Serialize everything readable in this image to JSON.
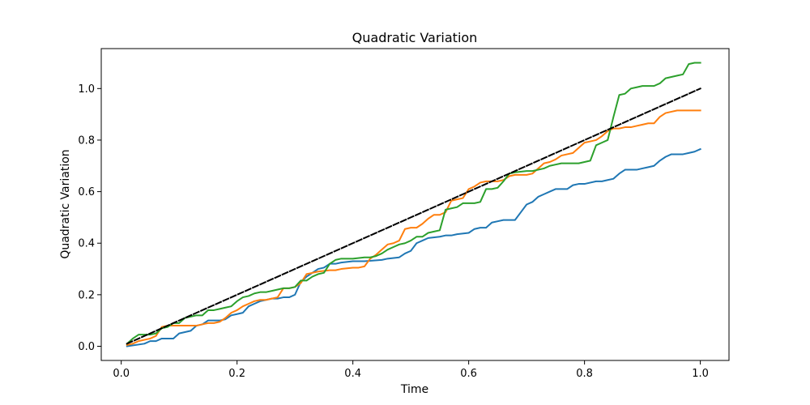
{
  "chart_data": {
    "type": "line",
    "title": "Quadratic Variation",
    "xlabel": "Time",
    "ylabel": "Quadratic Variation",
    "xlim": [
      -0.0345,
      1.0495
    ],
    "ylim": [
      -0.055,
      1.155
    ],
    "xticks": [
      0.0,
      0.2,
      0.4,
      0.6,
      0.8,
      1.0
    ],
    "xtick_labels": [
      "0.0",
      "0.2",
      "0.4",
      "0.6",
      "0.8",
      "1.0"
    ],
    "yticks": [
      0.0,
      0.2,
      0.4,
      0.6,
      0.8,
      1.0
    ],
    "ytick_labels": [
      "0.0",
      "0.2",
      "0.4",
      "0.6",
      "0.8",
      "1.0"
    ],
    "grid": false,
    "legend": "none",
    "series": [
      {
        "color": "#1f77b4",
        "style": "solid",
        "x": [
          0.01,
          0.04,
          0.05,
          0.06,
          0.07,
          0.08,
          0.09,
          0.1,
          0.11,
          0.12,
          0.13,
          0.14,
          0.15,
          0.16,
          0.17,
          0.18,
          0.19,
          0.2,
          0.21,
          0.22,
          0.23,
          0.24,
          0.25,
          0.26,
          0.27,
          0.28,
          0.29,
          0.3,
          0.31,
          0.32,
          0.33,
          0.34,
          0.35,
          0.36,
          0.37,
          0.38,
          0.4,
          0.42,
          0.45,
          0.46,
          0.48,
          0.49,
          0.5,
          0.51,
          0.52,
          0.53,
          0.55,
          0.56,
          0.57,
          0.58,
          0.6,
          0.61,
          0.62,
          0.63,
          0.64,
          0.65,
          0.66,
          0.67,
          0.68,
          0.69,
          0.7,
          0.71,
          0.72,
          0.73,
          0.74,
          0.75,
          0.76,
          0.77,
          0.78,
          0.79,
          0.8,
          0.82,
          0.83,
          0.84,
          0.85,
          0.86,
          0.87,
          0.88,
          0.89,
          0.9,
          0.91,
          0.92,
          0.93,
          0.94,
          0.95,
          0.96,
          0.97,
          0.98,
          0.99,
          1.0
        ],
        "y": [
          0.0,
          0.01,
          0.02,
          0.02,
          0.03,
          0.03,
          0.03,
          0.05,
          0.055,
          0.06,
          0.08,
          0.085,
          0.1,
          0.1,
          0.1,
          0.105,
          0.12,
          0.125,
          0.13,
          0.155,
          0.165,
          0.175,
          0.18,
          0.185,
          0.185,
          0.19,
          0.19,
          0.2,
          0.25,
          0.27,
          0.285,
          0.3,
          0.305,
          0.32,
          0.32,
          0.325,
          0.33,
          0.33,
          0.335,
          0.34,
          0.345,
          0.36,
          0.37,
          0.4,
          0.41,
          0.42,
          0.425,
          0.43,
          0.43,
          0.435,
          0.44,
          0.455,
          0.46,
          0.46,
          0.48,
          0.485,
          0.49,
          0.49,
          0.49,
          0.52,
          0.55,
          0.56,
          0.58,
          0.59,
          0.6,
          0.61,
          0.61,
          0.61,
          0.625,
          0.63,
          0.63,
          0.64,
          0.64,
          0.645,
          0.65,
          0.67,
          0.685,
          0.685,
          0.685,
          0.69,
          0.695,
          0.7,
          0.72,
          0.735,
          0.745,
          0.745,
          0.745,
          0.75,
          0.755,
          0.765
        ]
      },
      {
        "color": "#ff7f0e",
        "style": "solid",
        "x": [
          0.01,
          0.02,
          0.03,
          0.04,
          0.05,
          0.06,
          0.07,
          0.08,
          0.09,
          0.1,
          0.11,
          0.12,
          0.13,
          0.14,
          0.15,
          0.16,
          0.17,
          0.18,
          0.19,
          0.2,
          0.21,
          0.22,
          0.23,
          0.24,
          0.25,
          0.26,
          0.27,
          0.28,
          0.29,
          0.3,
          0.31,
          0.32,
          0.34,
          0.36,
          0.37,
          0.38,
          0.4,
          0.41,
          0.42,
          0.43,
          0.44,
          0.45,
          0.46,
          0.47,
          0.48,
          0.49,
          0.5,
          0.51,
          0.52,
          0.53,
          0.54,
          0.55,
          0.56,
          0.57,
          0.58,
          0.59,
          0.6,
          0.61,
          0.62,
          0.63,
          0.64,
          0.65,
          0.66,
          0.67,
          0.68,
          0.7,
          0.71,
          0.72,
          0.73,
          0.74,
          0.75,
          0.76,
          0.77,
          0.78,
          0.79,
          0.8,
          0.81,
          0.82,
          0.83,
          0.84,
          0.85,
          0.86,
          0.87,
          0.88,
          0.89,
          0.9,
          0.91,
          0.92,
          0.93,
          0.94,
          0.95,
          0.96,
          0.97,
          0.98,
          0.99,
          1.0
        ],
        "y": [
          0.005,
          0.01,
          0.02,
          0.025,
          0.03,
          0.04,
          0.075,
          0.08,
          0.08,
          0.08,
          0.08,
          0.08,
          0.08,
          0.085,
          0.09,
          0.09,
          0.095,
          0.11,
          0.13,
          0.14,
          0.155,
          0.165,
          0.175,
          0.18,
          0.18,
          0.185,
          0.19,
          0.225,
          0.225,
          0.23,
          0.245,
          0.28,
          0.29,
          0.295,
          0.295,
          0.3,
          0.305,
          0.305,
          0.31,
          0.34,
          0.355,
          0.375,
          0.395,
          0.4,
          0.41,
          0.455,
          0.46,
          0.46,
          0.475,
          0.495,
          0.51,
          0.51,
          0.52,
          0.565,
          0.57,
          0.575,
          0.61,
          0.62,
          0.635,
          0.64,
          0.64,
          0.64,
          0.645,
          0.66,
          0.665,
          0.665,
          0.67,
          0.69,
          0.71,
          0.715,
          0.725,
          0.74,
          0.745,
          0.75,
          0.77,
          0.79,
          0.795,
          0.8,
          0.815,
          0.835,
          0.845,
          0.845,
          0.85,
          0.85,
          0.855,
          0.86,
          0.865,
          0.865,
          0.89,
          0.905,
          0.91,
          0.915,
          0.915,
          0.915,
          0.915,
          0.915
        ]
      },
      {
        "color": "#2ca02c",
        "style": "solid",
        "x": [
          0.01,
          0.02,
          0.03,
          0.04,
          0.05,
          0.06,
          0.07,
          0.08,
          0.09,
          0.1,
          0.11,
          0.12,
          0.13,
          0.14,
          0.15,
          0.16,
          0.17,
          0.18,
          0.19,
          0.2,
          0.21,
          0.22,
          0.23,
          0.24,
          0.25,
          0.26,
          0.27,
          0.28,
          0.29,
          0.3,
          0.31,
          0.32,
          0.33,
          0.34,
          0.35,
          0.36,
          0.37,
          0.38,
          0.4,
          0.42,
          0.43,
          0.44,
          0.45,
          0.46,
          0.47,
          0.48,
          0.49,
          0.5,
          0.51,
          0.52,
          0.53,
          0.54,
          0.55,
          0.56,
          0.57,
          0.58,
          0.59,
          0.6,
          0.61,
          0.62,
          0.63,
          0.64,
          0.65,
          0.66,
          0.67,
          0.68,
          0.7,
          0.71,
          0.72,
          0.73,
          0.74,
          0.75,
          0.76,
          0.77,
          0.78,
          0.79,
          0.8,
          0.81,
          0.82,
          0.83,
          0.84,
          0.85,
          0.86,
          0.87,
          0.88,
          0.89,
          0.9,
          0.91,
          0.92,
          0.93,
          0.94,
          0.95,
          0.96,
          0.97,
          0.98,
          0.99,
          1.0
        ],
        "y": [
          0.01,
          0.03,
          0.045,
          0.045,
          0.045,
          0.05,
          0.07,
          0.075,
          0.09,
          0.09,
          0.11,
          0.115,
          0.12,
          0.12,
          0.14,
          0.14,
          0.145,
          0.15,
          0.155,
          0.175,
          0.19,
          0.195,
          0.205,
          0.21,
          0.21,
          0.215,
          0.22,
          0.225,
          0.225,
          0.23,
          0.255,
          0.255,
          0.27,
          0.28,
          0.285,
          0.32,
          0.335,
          0.34,
          0.34,
          0.345,
          0.345,
          0.35,
          0.36,
          0.375,
          0.385,
          0.395,
          0.4,
          0.41,
          0.425,
          0.425,
          0.44,
          0.445,
          0.45,
          0.53,
          0.535,
          0.54,
          0.555,
          0.555,
          0.555,
          0.56,
          0.61,
          0.61,
          0.615,
          0.64,
          0.67,
          0.675,
          0.68,
          0.68,
          0.685,
          0.69,
          0.7,
          0.705,
          0.71,
          0.71,
          0.71,
          0.71,
          0.715,
          0.72,
          0.78,
          0.79,
          0.8,
          0.89,
          0.975,
          0.98,
          1.0,
          1.005,
          1.01,
          1.01,
          1.01,
          1.02,
          1.04,
          1.045,
          1.05,
          1.055,
          1.095,
          1.1,
          1.1
        ]
      },
      {
        "color": "#000000",
        "style": "dashed",
        "x": [
          0.01,
          1.0
        ],
        "y": [
          0.01,
          1.0
        ]
      }
    ]
  }
}
